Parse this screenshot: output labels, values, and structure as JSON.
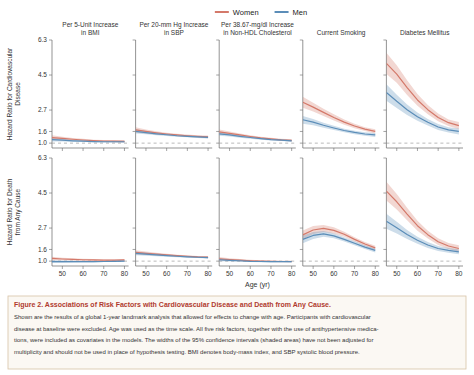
{
  "chart_data": [
    {
      "type": "line",
      "title": "Per 5-Unit Increase\nin BMI",
      "ylabel": "Hazard Ratio for Cardiovascular\nDisease",
      "legend": "top",
      "annotations": [
        "Figure 2. Associations of Risk Factors with Cardiovascular Disease and Death from Any Cause.",
        "Shown are the results of a global 1-year landmark analysis that allowed for effects to change with age. Participants with cardiovascular\ndisease at baseline were excluded. Age was used as the time scale. All five risk factors, together with the use of antihypertensive medica-\ntions, were included as covariates in the models. The widths of the 95% confidence intervals (shaded areas) have not been adjusted for\nmultiplicity and should not be used in place of hypothesis testing. BMI denotes body-mass index, and SBP systolic blood pressure."
      ],
      "x": [
        45,
        50,
        55,
        60,
        65,
        70,
        75,
        80
      ],
      "xlim": [
        45,
        82
      ],
      "ylim": [
        0.75,
        6.3
      ],
      "xticks": [
        50,
        60,
        70,
        80
      ],
      "yticks": [
        {
          "value": 1.0,
          "label": "1.0"
        },
        1.6,
        2.7,
        4.5,
        6.3
      ],
      "tick_labels": "y",
      "reference_line": 1.0,
      "series": [
        {
          "name": "Women",
          "color": "#d4796a",
          "values": [
            1.28,
            1.24,
            1.2,
            1.16,
            1.13,
            1.11,
            1.1,
            1.09
          ],
          "error": [
            0.12,
            0.09,
            0.07,
            0.06,
            0.05,
            0.05,
            0.05,
            0.06
          ]
        },
        {
          "name": "Men",
          "color": "#5b8db8",
          "values": [
            1.18,
            1.15,
            1.12,
            1.1,
            1.08,
            1.07,
            1.07,
            1.07
          ],
          "error": [
            0.09,
            0.07,
            0.05,
            0.04,
            0.04,
            0.04,
            0.04,
            0.05
          ]
        }
      ]
    },
    {
      "type": "line",
      "title": "Per 20-mm Hg Increase\nin SBP",
      "x": [
        45,
        50,
        55,
        60,
        65,
        70,
        75,
        80
      ],
      "xlim": [
        45,
        82
      ],
      "ylim": [
        0.75,
        6.3
      ],
      "xticks": [
        50,
        60,
        70,
        80
      ],
      "yticks": [
        {
          "value": 1.0,
          "label": "1.0"
        },
        1.6,
        2.7,
        4.5,
        6.3
      ],
      "tick_labels": false,
      "reference_line": 1.0,
      "series": [
        {
          "name": "Women",
          "color": "#d4796a",
          "values": [
            1.68,
            1.6,
            1.53,
            1.47,
            1.42,
            1.38,
            1.35,
            1.32
          ],
          "error": [
            0.13,
            0.1,
            0.08,
            0.07,
            0.06,
            0.06,
            0.06,
            0.07
          ]
        },
        {
          "name": "Men",
          "color": "#5b8db8",
          "values": [
            1.6,
            1.54,
            1.48,
            1.43,
            1.38,
            1.35,
            1.32,
            1.3
          ],
          "error": [
            0.11,
            0.08,
            0.07,
            0.06,
            0.05,
            0.05,
            0.05,
            0.06
          ]
        }
      ]
    },
    {
      "type": "line",
      "title": "Per 38.67-mg/dl Increase\nin Non-HDL Cholesterol",
      "x": [
        45,
        50,
        55,
        60,
        65,
        70,
        75,
        80
      ],
      "xlim": [
        45,
        82
      ],
      "ylim": [
        0.75,
        6.3
      ],
      "xticks": [
        50,
        60,
        70,
        80
      ],
      "yticks": [
        {
          "value": 1.0,
          "label": "1.0"
        },
        1.6,
        2.7,
        4.5,
        6.3
      ],
      "tick_labels": false,
      "reference_line": 1.0,
      "series": [
        {
          "name": "Women",
          "color": "#d4796a",
          "values": [
            1.58,
            1.5,
            1.42,
            1.34,
            1.27,
            1.22,
            1.17,
            1.14
          ],
          "error": [
            0.12,
            0.1,
            0.08,
            0.07,
            0.06,
            0.06,
            0.05,
            0.06
          ]
        },
        {
          "name": "Men",
          "color": "#5b8db8",
          "values": [
            1.48,
            1.42,
            1.35,
            1.29,
            1.23,
            1.18,
            1.15,
            1.12
          ],
          "error": [
            0.1,
            0.08,
            0.07,
            0.06,
            0.05,
            0.05,
            0.04,
            0.05
          ]
        }
      ]
    },
    {
      "type": "line",
      "title": "Current Smoking",
      "x": [
        45,
        50,
        55,
        60,
        65,
        70,
        75,
        80
      ],
      "xlim": [
        45,
        82
      ],
      "ylim": [
        0.75,
        6.3
      ],
      "xticks": [
        50,
        60,
        70,
        80
      ],
      "yticks": [
        {
          "value": 1.0,
          "label": "1.0"
        },
        1.6,
        2.7,
        4.5,
        6.3
      ],
      "tick_labels": false,
      "reference_line": 1.0,
      "series": [
        {
          "name": "Women",
          "color": "#d4796a",
          "values": [
            3.1,
            2.85,
            2.58,
            2.32,
            2.08,
            1.88,
            1.72,
            1.6
          ],
          "error": [
            0.28,
            0.23,
            0.19,
            0.16,
            0.13,
            0.12,
            0.1,
            0.11
          ]
        },
        {
          "name": "Men",
          "color": "#5b8db8",
          "values": [
            2.2,
            2.08,
            1.92,
            1.78,
            1.65,
            1.55,
            1.47,
            1.42
          ],
          "error": [
            0.2,
            0.16,
            0.13,
            0.11,
            0.09,
            0.09,
            0.09,
            0.1
          ]
        }
      ]
    },
    {
      "type": "line",
      "title": "Diabetes Mellitus",
      "x": [
        45,
        50,
        55,
        60,
        65,
        70,
        75,
        80
      ],
      "xlim": [
        45,
        82
      ],
      "ylim": [
        0.75,
        6.3
      ],
      "xticks": [
        50,
        60,
        70,
        80
      ],
      "yticks": [
        {
          "value": 1.0,
          "label": "1.0"
        },
        1.6,
        2.7,
        4.5,
        6.3
      ],
      "tick_labels": false,
      "reference_line": 1.0,
      "series": [
        {
          "name": "Women",
          "color": "#d4796a",
          "values": [
            5.1,
            4.55,
            3.85,
            3.22,
            2.72,
            2.32,
            2.05,
            1.9
          ],
          "error": [
            0.55,
            0.45,
            0.38,
            0.3,
            0.24,
            0.2,
            0.17,
            0.19
          ]
        },
        {
          "name": "Men",
          "color": "#5b8db8",
          "values": [
            3.6,
            3.15,
            2.72,
            2.36,
            2.07,
            1.83,
            1.68,
            1.6
          ],
          "error": [
            0.42,
            0.34,
            0.27,
            0.21,
            0.17,
            0.15,
            0.13,
            0.15
          ]
        }
      ]
    },
    {
      "type": "line",
      "ylabel": "Hazard Ratio for Death\nfrom Any Cause",
      "x": [
        45,
        50,
        55,
        60,
        65,
        70,
        75,
        80
      ],
      "xlim": [
        45,
        82
      ],
      "ylim": [
        0.75,
        6.3
      ],
      "xticks": [
        50,
        60,
        70,
        80
      ],
      "yticks": [
        {
          "value": 1.0,
          "label": "1.0"
        },
        1.6,
        2.7,
        4.5,
        6.3
      ],
      "reference_line": 1.0,
      "series": [
        {
          "name": "Women",
          "color": "#d4796a",
          "values": [
            1.14,
            1.11,
            1.09,
            1.07,
            1.06,
            1.05,
            1.05,
            1.06
          ],
          "error": [
            0.09,
            0.07,
            0.06,
            0.05,
            0.05,
            0.04,
            0.04,
            0.05
          ]
        },
        {
          "name": "Men",
          "color": "#5b8db8",
          "values": [
            0.97,
            0.97,
            0.97,
            0.97,
            0.97,
            0.98,
            0.99,
            1.0
          ],
          "error": [
            0.07,
            0.06,
            0.05,
            0.04,
            0.04,
            0.03,
            0.03,
            0.04
          ]
        }
      ]
    },
    {
      "type": "line",
      "x": [
        45,
        50,
        55,
        60,
        65,
        70,
        75,
        80
      ],
      "xlim": [
        45,
        82
      ],
      "ylim": [
        0.75,
        6.3
      ],
      "xticks": [
        50,
        60,
        70,
        80
      ],
      "yticks": [
        {
          "value": 1.0,
          "label": "1.0"
        },
        1.6,
        2.7,
        4.5,
        6.3
      ],
      "tick_labels": "x",
      "reference_line": 1.0,
      "series": [
        {
          "name": "Women",
          "color": "#d4796a",
          "values": [
            1.45,
            1.4,
            1.36,
            1.32,
            1.28,
            1.25,
            1.22,
            1.21
          ],
          "error": [
            0.11,
            0.09,
            0.07,
            0.06,
            0.05,
            0.05,
            0.05,
            0.06
          ]
        },
        {
          "name": "Men",
          "color": "#5b8db8",
          "values": [
            1.4,
            1.36,
            1.32,
            1.28,
            1.25,
            1.22,
            1.2,
            1.18
          ],
          "error": [
            0.1,
            0.08,
            0.07,
            0.06,
            0.05,
            0.05,
            0.04,
            0.05
          ]
        }
      ]
    },
    {
      "type": "line",
      "xlabel": "Age (yr)",
      "x": [
        45,
        50,
        55,
        60,
        65,
        70,
        75,
        80
      ],
      "xlim": [
        45,
        82
      ],
      "ylim": [
        0.75,
        6.3
      ],
      "xticks": [
        50,
        60,
        70,
        80
      ],
      "yticks": [
        {
          "value": 1.0,
          "label": "1.0"
        },
        1.6,
        2.7,
        4.5,
        6.3
      ],
      "tick_labels": "x",
      "reference_line": 1.0,
      "series": [
        {
          "name": "Women",
          "color": "#d4796a",
          "values": [
            1.12,
            1.08,
            1.05,
            1.02,
            1.0,
            0.99,
            0.98,
            0.98
          ],
          "error": [
            0.09,
            0.07,
            0.06,
            0.05,
            0.04,
            0.04,
            0.04,
            0.05
          ]
        },
        {
          "name": "Men",
          "color": "#5b8db8",
          "values": [
            1.07,
            1.04,
            1.02,
            0.99,
            0.98,
            0.97,
            0.97,
            0.97
          ],
          "error": [
            0.08,
            0.06,
            0.05,
            0.04,
            0.04,
            0.04,
            0.03,
            0.04
          ]
        }
      ]
    },
    {
      "type": "line",
      "x": [
        45,
        50,
        55,
        60,
        65,
        70,
        75,
        80
      ],
      "xlim": [
        45,
        82
      ],
      "ylim": [
        0.75,
        6.3
      ],
      "xticks": [
        50,
        60,
        70,
        80
      ],
      "yticks": [
        {
          "value": 1.0,
          "label": "1.0"
        },
        1.6,
        2.7,
        4.5,
        6.3
      ],
      "tick_labels": "x",
      "reference_line": 1.0,
      "series": [
        {
          "name": "Women",
          "color": "#d4796a",
          "values": [
            2.35,
            2.6,
            2.68,
            2.58,
            2.38,
            2.12,
            1.88,
            1.68
          ],
          "error": [
            0.22,
            0.2,
            0.18,
            0.16,
            0.13,
            0.11,
            0.1,
            0.11
          ]
        },
        {
          "name": "Men",
          "color": "#5b8db8",
          "values": [
            2.12,
            2.32,
            2.4,
            2.3,
            2.12,
            1.92,
            1.72,
            1.55
          ],
          "error": [
            0.2,
            0.18,
            0.15,
            0.13,
            0.11,
            0.1,
            0.09,
            0.1
          ]
        }
      ]
    },
    {
      "type": "line",
      "x": [
        45,
        50,
        55,
        60,
        65,
        70,
        75,
        80
      ],
      "xlim": [
        45,
        82
      ],
      "ylim": [
        0.75,
        6.3
      ],
      "xticks": [
        50,
        60,
        70,
        80
      ],
      "yticks": [
        {
          "value": 1.0,
          "label": "1.0"
        },
        1.6,
        2.7,
        4.5,
        6.3
      ],
      "tick_labels": "x",
      "reference_line": 1.0,
      "series": [
        {
          "name": "Women",
          "color": "#d4796a",
          "values": [
            4.6,
            4.05,
            3.42,
            2.82,
            2.36,
            2.0,
            1.78,
            1.65
          ],
          "error": [
            0.48,
            0.4,
            0.32,
            0.26,
            0.2,
            0.17,
            0.15,
            0.16
          ]
        },
        {
          "name": "Men",
          "color": "#5b8db8",
          "values": [
            3.05,
            2.72,
            2.37,
            2.07,
            1.83,
            1.65,
            1.55,
            1.48
          ],
          "error": [
            0.38,
            0.3,
            0.23,
            0.18,
            0.15,
            0.13,
            0.12,
            0.13
          ]
        }
      ]
    }
  ]
}
